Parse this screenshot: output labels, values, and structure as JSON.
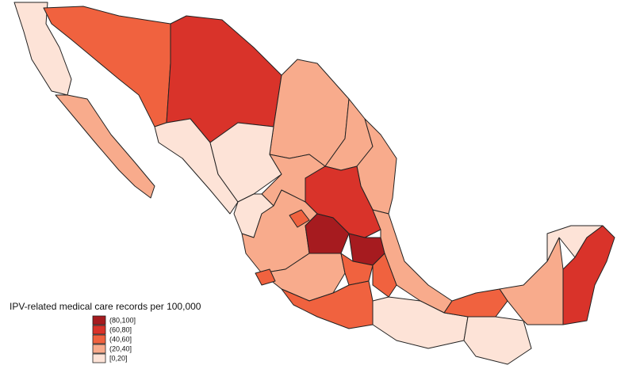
{
  "legend": {
    "title": "IPV-related medical care records per 100,000",
    "items": [
      {
        "label": "(80,100]",
        "color": "#a61b1f"
      },
      {
        "label": "(60,80]",
        "color": "#d9332a"
      },
      {
        "label": "(40,60]",
        "color": "#f0623f"
      },
      {
        "label": "(20,40]",
        "color": "#f8ab8c"
      },
      {
        "label": "[0,20]",
        "color": "#fde3d7"
      }
    ]
  }
}
